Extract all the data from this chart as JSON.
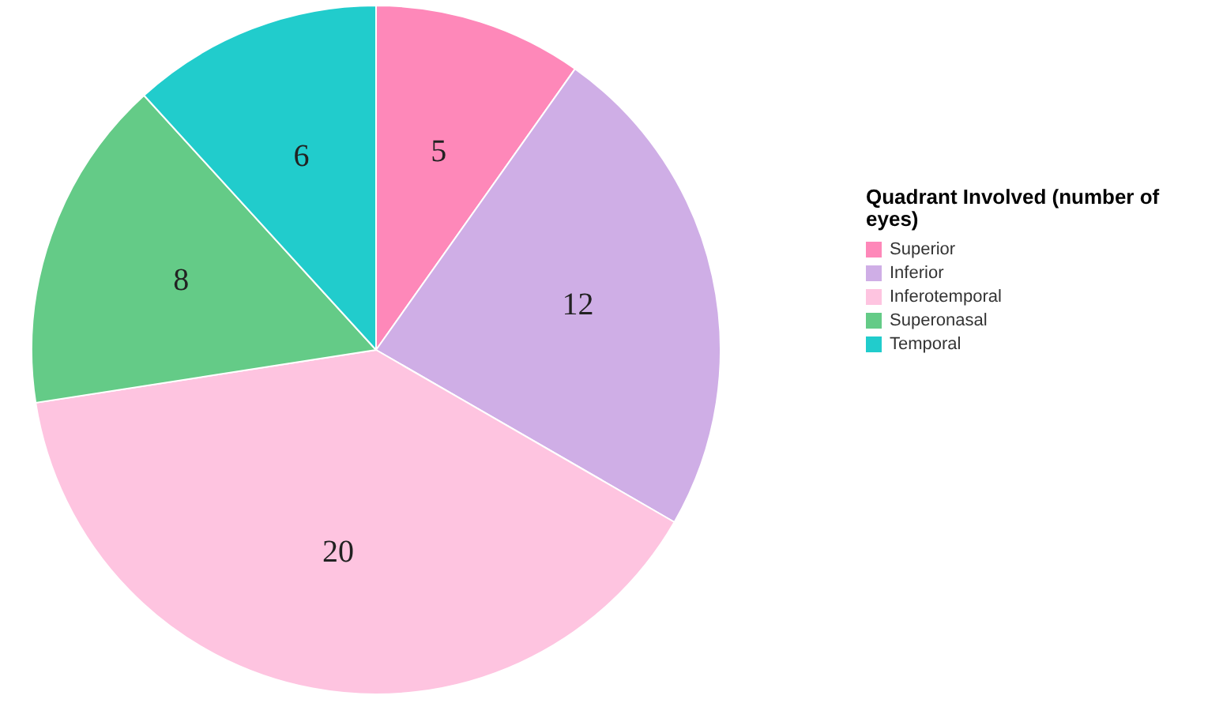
{
  "chart_data": {
    "type": "pie",
    "legend_title": "Quadrant Involved (number of eyes)",
    "categories": [
      "Superior",
      "Inferior",
      "Inferotemporal",
      "Superonasal",
      "Temporal"
    ],
    "values": [
      5,
      12,
      20,
      8,
      6
    ],
    "colors": [
      "#fe88b9",
      "#cfaee6",
      "#fec4e0",
      "#64cb87",
      "#21cccc"
    ],
    "data_labels": true,
    "legend": "top right"
  }
}
